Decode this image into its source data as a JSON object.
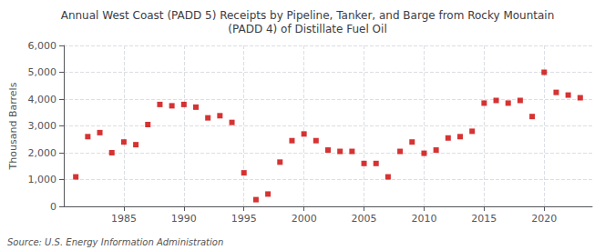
{
  "chart_data": {
    "type": "scatter",
    "title": "Annual West Coast (PADD 5) Receipts by Pipeline, Tanker, and Barge from Rocky Mountain\n(PADD 4) of Distillate Fuel Oil",
    "ylabel": "Thousand Barrels",
    "source": "Source: U.S. Energy Information Administration",
    "x": [
      1981,
      1982,
      1983,
      1984,
      1985,
      1986,
      1987,
      1988,
      1989,
      1990,
      1991,
      1992,
      1993,
      1994,
      1995,
      1996,
      1997,
      1998,
      1999,
      2000,
      2001,
      2002,
      2003,
      2004,
      2005,
      2006,
      2007,
      2008,
      2009,
      2010,
      2011,
      2012,
      2013,
      2014,
      2015,
      2016,
      2017,
      2018,
      2019,
      2020,
      2021,
      2022,
      2023
    ],
    "values": [
      1100,
      2600,
      2750,
      2000,
      2400,
      2300,
      3050,
      3800,
      3750,
      3800,
      3700,
      3300,
      3380,
      3130,
      1250,
      250,
      460,
      1650,
      2450,
      2700,
      2450,
      2100,
      2050,
      2050,
      1600,
      1600,
      1100,
      2050,
      2400,
      1980,
      2100,
      2550,
      2600,
      2800,
      3850,
      3950,
      3850,
      3950,
      3350,
      5000,
      4250,
      4150,
      4050
    ],
    "color": "#cc0000",
    "marker": "square",
    "xlim": [
      1980,
      2024
    ],
    "xticks": [
      1985,
      1990,
      1995,
      2000,
      2005,
      2010,
      2015,
      2020
    ],
    "ylim": [
      0,
      6000
    ],
    "yticks": [
      0,
      {
        "value": 1000,
        "label": "1,000"
      },
      {
        "value": 2000,
        "label": "2,000"
      },
      {
        "value": 3000,
        "label": "3,000"
      },
      {
        "value": 4000,
        "label": "4,000"
      },
      {
        "value": 5000,
        "label": "5,000"
      },
      {
        "value": 6000,
        "label": "6,000"
      }
    ],
    "grid": true
  }
}
